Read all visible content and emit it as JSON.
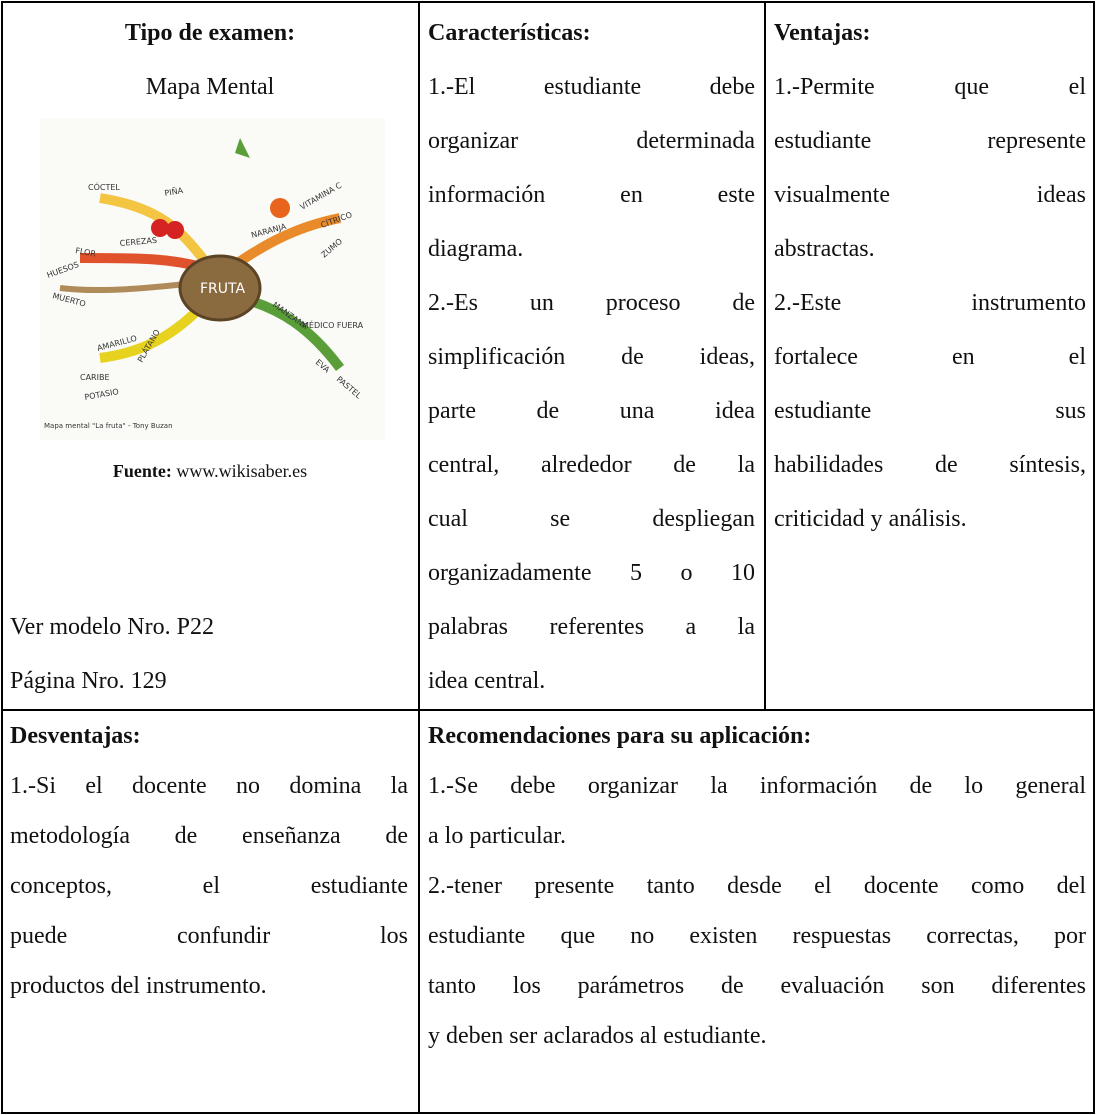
{
  "table": {
    "top": {
      "tipo": {
        "header": "Tipo de examen:",
        "name": "Mapa Mental",
        "image": {
          "center": "FRUTA",
          "labels": [
            "CÓCTEL",
            "PIÑA",
            "FLOR",
            "CEREZAS",
            "HUESOS",
            "MUERTO",
            "NARANJA",
            "VITAMINA C",
            "CÍTRICO",
            "ZUMO",
            "MANZANA",
            "MÉDICO FUERA",
            "EVA",
            "PASTEL",
            "AMARILLO",
            "PLÁTANO",
            "CARIBE",
            "POTASIO"
          ],
          "caption": "Mapa mental \"La fruta\" - Tony Buzan"
        },
        "source": {
          "label": "Fuente:",
          "url": "www.wikisaber.es"
        },
        "model": "Ver modelo Nro. P22",
        "page": "Página Nro. 129"
      },
      "caracteristicas": {
        "header": "Características:",
        "paragraphs": [
          [
            "1.-El estudiante debe",
            "organizar determinada",
            "información en este",
            "diagrama."
          ],
          [
            "2.-Es un proceso de",
            "simplificación de ideas,",
            "parte de una idea",
            "central, alrededor de la",
            "cual se despliegan",
            "organizadamente 5 o 10",
            "palabras referentes a la",
            "idea central."
          ]
        ]
      },
      "ventajas": {
        "header": "Ventajas:",
        "paragraphs": [
          [
            "1.-Permite que el",
            "estudiante represente",
            "visualmente ideas",
            "abstractas."
          ],
          [
            "2.-Este instrumento",
            "fortalece en el",
            "estudiante sus",
            "habilidades de síntesis,",
            "criticidad y análisis."
          ]
        ]
      }
    },
    "bottom": {
      "desventajas": {
        "header": "Desventajas:",
        "paragraphs": [
          [
            "1.-Si el docente no domina la",
            "metodología de enseñanza de",
            "conceptos, el estudiante",
            "puede confundir los",
            "productos del instrumento."
          ]
        ]
      },
      "recomendaciones": {
        "header": "Recomendaciones para su aplicación:",
        "paragraphs": [
          [
            "1.-Se debe organizar la información de lo general",
            "a lo particular."
          ],
          [
            "2.-tener presente tanto desde el docente como del",
            "estudiante que no existen respuestas correctas, por",
            "tanto los parámetros de evaluación son diferentes",
            "y deben ser aclarados al estudiante."
          ]
        ]
      }
    }
  }
}
